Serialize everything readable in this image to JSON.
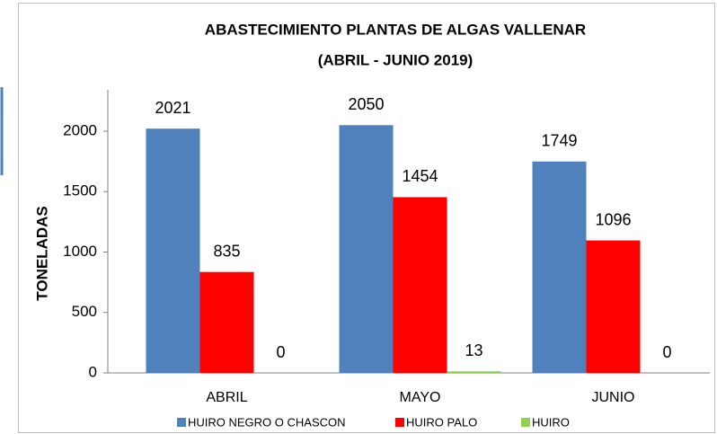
{
  "chart_data": {
    "type": "bar",
    "title": [
      "ABASTECIMIENTO PLANTAS DE ALGAS VALLENAR",
      "(ABRIL - JUNIO 2019)"
    ],
    "y_label": "TONELADAS",
    "categories": [
      "ABRIL",
      "MAYO",
      "JUNIO"
    ],
    "series": [
      {
        "name": "HUIRO NEGRO O CHASCON",
        "color": "#4f81bd",
        "values": [
          2021,
          2050,
          1749
        ]
      },
      {
        "name": "HUIRO PALO",
        "color": "#ff0000",
        "values": [
          835,
          1454,
          1096
        ]
      },
      {
        "name": "HUIRO",
        "color": "#92d050",
        "values": [
          0,
          13,
          0
        ]
      }
    ],
    "ylim": [
      0,
      2000
    ],
    "yticks": [
      0,
      500,
      1000,
      1500,
      2000
    ],
    "grid": false,
    "legend": "bottom"
  }
}
